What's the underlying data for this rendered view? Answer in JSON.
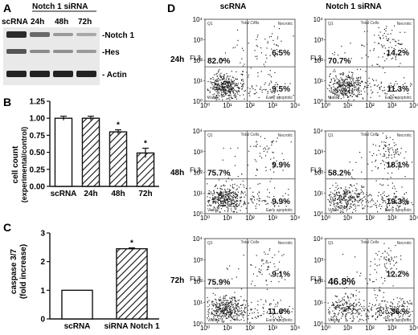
{
  "panels": {
    "A": {
      "letter": "A",
      "lanes": [
        "scRNA",
        "24h",
        "48h",
        "72h"
      ],
      "group_label": "Notch 1 siRNA",
      "bands": [
        "-Notch 1",
        "-Hes",
        "- Actin"
      ]
    },
    "B": {
      "letter": "B"
    },
    "C": {
      "letter": "C"
    },
    "D": {
      "letter": "D",
      "col_labels": [
        "scRNA",
        "Notch 1 siRNA"
      ],
      "row_labels": [
        "24h",
        "48h",
        "72h"
      ],
      "quadrant_text": {
        "top_center": "Total Cells",
        "top_left": "Q1",
        "top_right": "Necrotic",
        "bottom_left": "Viable",
        "bottom_right": "Early apoptotic",
        "y_axis": "FL3"
      },
      "tick_labels": [
        "10⁰",
        "10¹",
        "10²",
        "10³",
        "10⁴"
      ],
      "plots": [
        {
          "row": "24h",
          "col": "scRNA",
          "viable": "82.0%",
          "necrotic": "6.5%",
          "early_apoptotic": "9.5%"
        },
        {
          "row": "24h",
          "col": "Notch 1 siRNA",
          "viable": "70.7%",
          "necrotic": "14.2%",
          "early_apoptotic": "11.3%"
        },
        {
          "row": "48h",
          "col": "scRNA",
          "viable": "75.7%",
          "necrotic": "9.9%",
          "early_apoptotic": "9.9%"
        },
        {
          "row": "48h",
          "col": "Notch 1 siRNA",
          "viable": "58.2%",
          "necrotic": "18.1%",
          "early_apoptotic": "19.3%"
        },
        {
          "row": "72h",
          "col": "scRNA",
          "viable": "75.9%",
          "necrotic": "9.1%",
          "early_apoptotic": "11.6%"
        },
        {
          "row": "72h",
          "col": "Notch 1 siRNA",
          "viable": "46.8%",
          "necrotic": "12.2%",
          "early_apoptotic": "36.%"
        }
      ]
    }
  },
  "chart_data": [
    {
      "type": "bar",
      "panel": "B",
      "categories": [
        "scRNA",
        "24h",
        "48h",
        "72h"
      ],
      "values": [
        1.0,
        1.0,
        0.8,
        0.49
      ],
      "errors": [
        0.03,
        0.03,
        0.03,
        0.07
      ],
      "significant": [
        false,
        false,
        true,
        true
      ],
      "significance_mark": "*",
      "ylabel": "cell count",
      "ylabel2": "(experimental/control)",
      "ylim": [
        0,
        1.25
      ],
      "yticks": [
        "0.00",
        "0.25",
        "0.50",
        "0.75",
        "1.00",
        "1.25"
      ],
      "bar_styles": [
        "open",
        "hatched",
        "hatched",
        "hatched"
      ]
    },
    {
      "type": "bar",
      "panel": "C",
      "categories": [
        "scRNA",
        "siRNA Notch 1"
      ],
      "values": [
        1.0,
        2.45
      ],
      "errors": [
        0,
        0.03
      ],
      "significant": [
        false,
        true
      ],
      "significance_mark": "*",
      "ylabel": "caspase 3/7",
      "ylabel2": "(fold increase)",
      "ylim": [
        0,
        3
      ],
      "yticks": [
        "0",
        "1",
        "2",
        "3"
      ],
      "bar_styles": [
        "open",
        "hatched"
      ]
    }
  ]
}
